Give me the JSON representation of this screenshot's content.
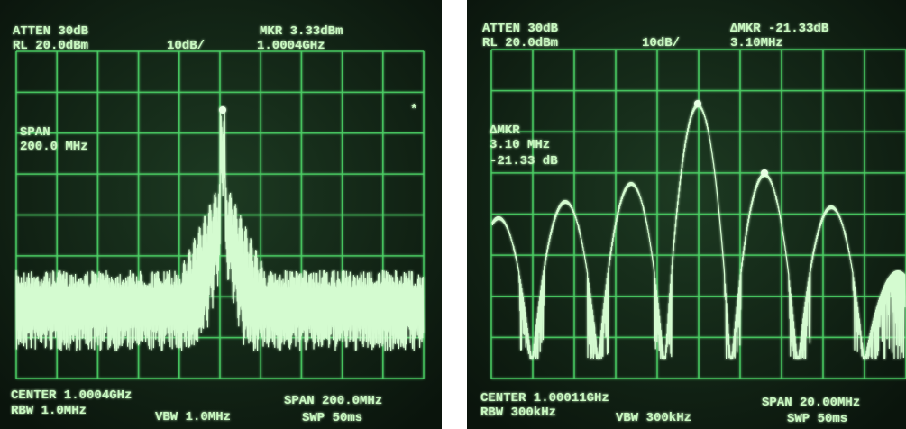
{
  "screens": [
    {
      "atten": "ATTEN 30dB",
      "ref_level": "RL 20.0dBm",
      "scale": "10dB/",
      "marker": "MKR 3.33dBm",
      "marker_freq": "1.0004GHz",
      "side_label": [
        "SPAN",
        "200.0 MHz"
      ],
      "flag": "*",
      "center": "CENTER 1.0004GHz",
      "span": "SPAN 200.0MHz",
      "rbw": "RBW 1.0MHz",
      "vbw": "VBW 1.0MHz",
      "sweep": "SWP 50ms"
    },
    {
      "atten": "ATTEN 30dB",
      "ref_level": "RL 20.0dBm",
      "scale": "10dB/",
      "marker": "ΔMKR -21.33dB",
      "marker_freq": "3.10MHz",
      "side_label": [
        "ΔMKR",
        "3.10 MHz",
        "-21.33 dB"
      ],
      "center": "CENTER 1.00011GHz",
      "span": "SPAN 20.00MHz",
      "rbw": "RBW 300kHz",
      "vbw": "VBW 300kHz",
      "sweep": "SWP 50ms"
    }
  ]
}
